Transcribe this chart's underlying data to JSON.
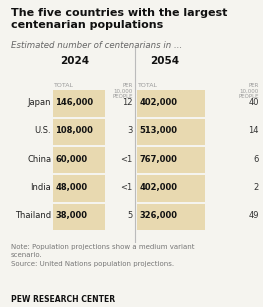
{
  "title": "The five countries with the largest\ncentenarian populations",
  "subtitle": "Estimated number of centenarians in ...",
  "countries": [
    "Japan",
    "U.S.",
    "China",
    "India",
    "Thailand"
  ],
  "total_2024": [
    "146,000",
    "108,000",
    "60,000",
    "48,000",
    "38,000"
  ],
  "per10k_2024": [
    "12",
    "3",
    "<1",
    "<1",
    "5"
  ],
  "total_2054": [
    "402,000",
    "513,000",
    "767,000",
    "402,000",
    "326,000"
  ],
  "per10k_2054": [
    "40",
    "14",
    "6",
    "2",
    "49"
  ],
  "highlight_color": "#e8d9b0",
  "bg_color": "#f5f4ef",
  "divider_color": "#bbbbbb",
  "note": "Note: Population projections show a medium variant\nscenario.\nSource: United Nations population projections.",
  "footer": "PEW RESEARCH CENTER",
  "header_2024": "2024",
  "header_2054": "2054",
  "col_total": "TOTAL",
  "col_per": "PER\n10,000\nPEOPLE"
}
